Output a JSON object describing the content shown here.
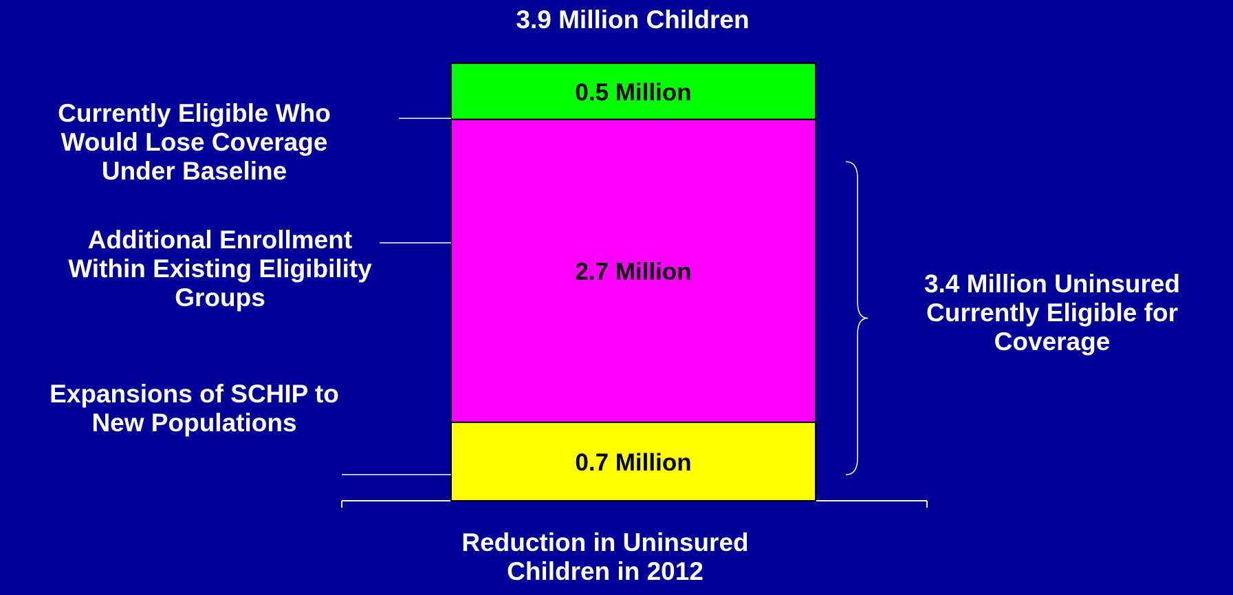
{
  "chart_data": {
    "type": "bar",
    "stacked": true,
    "total_label": "3.9 Million Children",
    "xlabel": [
      "Reduction in Uninsured",
      "Children in 2012"
    ],
    "ylim": [
      0,
      3.9
    ],
    "segments": [
      {
        "value": 0.7,
        "value_label": "0.7 Million",
        "color": "#ffff00",
        "label": [
          "Currently Eligible Who",
          "Would Lose Coverage",
          "Under Baseline"
        ]
      },
      {
        "value": 2.7,
        "value_label": "2.7 Million",
        "color": "#ff00ff",
        "label": [
          "Additional Enrollment",
          "Within Existing Eligibility",
          "Groups"
        ]
      },
      {
        "value": 0.5,
        "value_label": "0.5 Million",
        "color": "#00ff00",
        "label": [
          "Expansions of SCHIP to",
          "New Populations"
        ]
      }
    ],
    "brace": {
      "value": 3.4,
      "label": [
        "3.4 Million Uninsured",
        "Currently Eligible for",
        "Coverage"
      ]
    }
  }
}
